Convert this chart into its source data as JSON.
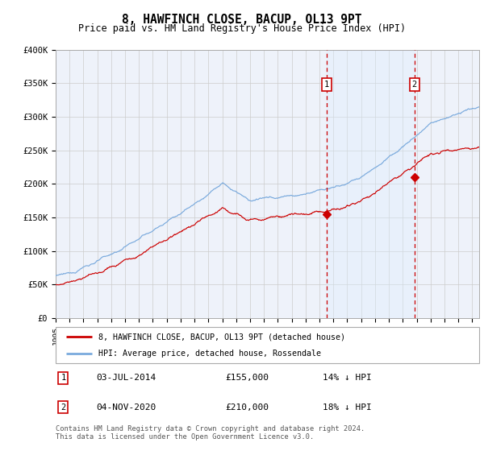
{
  "title": "8, HAWFINCH CLOSE, BACUP, OL13 9PT",
  "subtitle": "Price paid vs. HM Land Registry's House Price Index (HPI)",
  "ylim": [
    0,
    400000
  ],
  "xlim_start": 1995.0,
  "xlim_end": 2025.5,
  "hpi_color": "#7aaadd",
  "price_color": "#cc0000",
  "shade_color": "#ddeeff",
  "marker1_date": 2014.5,
  "marker2_date": 2020.83,
  "marker1_price": 155000,
  "marker2_price": 210000,
  "legend_line1": "8, HAWFINCH CLOSE, BACUP, OL13 9PT (detached house)",
  "legend_line2": "HPI: Average price, detached house, Rossendale",
  "table_row1_num": "1",
  "table_row1_date": "03-JUL-2014",
  "table_row1_price": "£155,000",
  "table_row1_hpi": "14% ↓ HPI",
  "table_row2_num": "2",
  "table_row2_date": "04-NOV-2020",
  "table_row2_price": "£210,000",
  "table_row2_hpi": "18% ↓ HPI",
  "footnote": "Contains HM Land Registry data © Crown copyright and database right 2024.\nThis data is licensed under the Open Government Licence v3.0.",
  "background_color": "#ffffff",
  "grid_color": "#cccccc",
  "plot_bg_color": "#eef2fa"
}
